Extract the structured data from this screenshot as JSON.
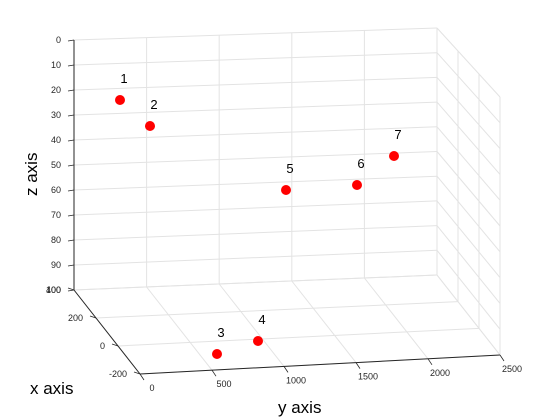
{
  "chart_data": {
    "type": "scatter",
    "title": "",
    "xlabel": "x axis",
    "ylabel": "y axis",
    "zlabel": "z axis",
    "xticks": [
      "400",
      "200",
      "0",
      "-200"
    ],
    "yticks": [
      "0",
      "500",
      "1000",
      "1500",
      "2000",
      "2500"
    ],
    "zticks": [
      "0",
      "10",
      "20",
      "30",
      "40",
      "50",
      "60",
      "70",
      "80",
      "90",
      "100"
    ],
    "marker_color": "#ff0000",
    "grid": true,
    "points": [
      {
        "label": "1"
      },
      {
        "label": "2"
      },
      {
        "label": "3"
      },
      {
        "label": "4"
      },
      {
        "label": "5"
      },
      {
        "label": "6"
      },
      {
        "label": "7"
      }
    ]
  }
}
